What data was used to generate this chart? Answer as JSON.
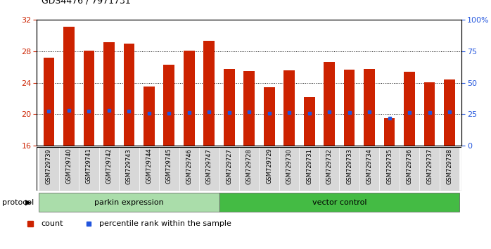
{
  "title": "GDS4476 / 7971731",
  "samples": [
    "GSM729739",
    "GSM729740",
    "GSM729741",
    "GSM729742",
    "GSM729743",
    "GSM729744",
    "GSM729745",
    "GSM729746",
    "GSM729747",
    "GSM729727",
    "GSM729728",
    "GSM729729",
    "GSM729730",
    "GSM729731",
    "GSM729732",
    "GSM729733",
    "GSM729734",
    "GSM729735",
    "GSM729736",
    "GSM729737",
    "GSM729738"
  ],
  "count_values": [
    27.2,
    31.1,
    28.1,
    29.2,
    29.0,
    23.5,
    26.3,
    28.1,
    29.3,
    25.8,
    25.5,
    23.4,
    25.6,
    22.2,
    26.7,
    25.7,
    25.8,
    19.5,
    25.4,
    24.1,
    24.4
  ],
  "percentile_values": [
    20.4,
    20.5,
    20.4,
    20.5,
    20.4,
    20.1,
    20.1,
    20.2,
    20.3,
    20.2,
    20.3,
    20.1,
    20.2,
    20.1,
    20.3,
    20.2,
    20.3,
    19.5,
    20.2,
    20.2,
    20.3
  ],
  "group1_label": "parkin expression",
  "group2_label": "vector control",
  "group1_count": 9,
  "group2_count": 12,
  "ylim_left": [
    16,
    32
  ],
  "yticks_left": [
    16,
    20,
    24,
    28,
    32
  ],
  "ylim_right": [
    0,
    100
  ],
  "yticks_right": [
    0,
    25,
    50,
    75,
    100
  ],
  "bar_color": "#cc2200",
  "dot_color": "#2255dd",
  "group1_color": "#aaddaa",
  "group2_color": "#44bb44",
  "legend_count_label": "count",
  "legend_percentile_label": "percentile rank within the sample",
  "protocol_label": "protocol"
}
